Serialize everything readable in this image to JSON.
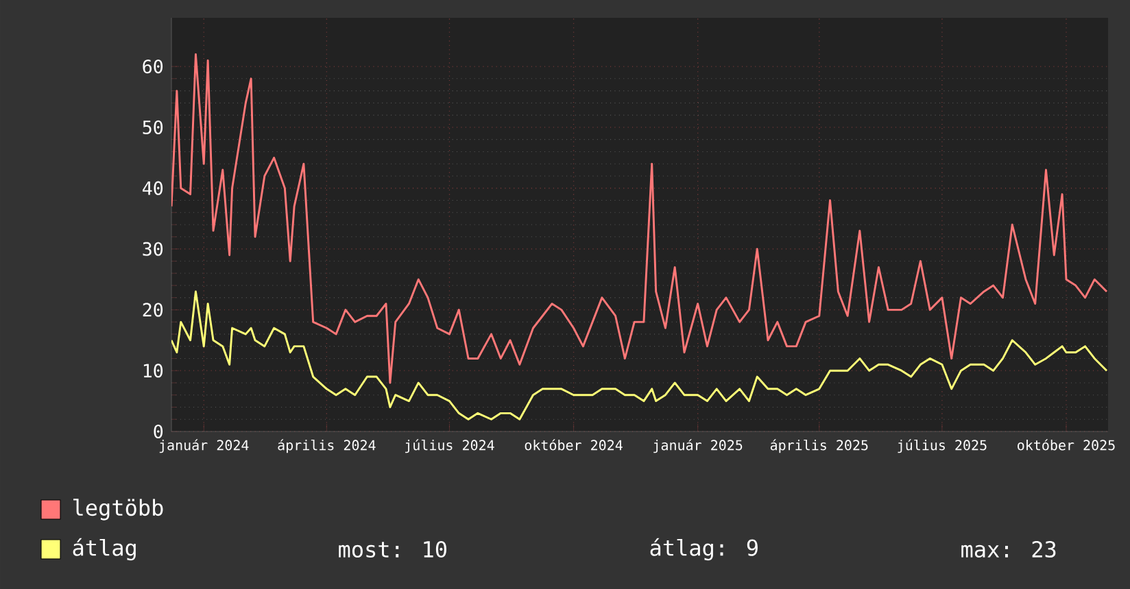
{
  "chart_data": {
    "type": "line",
    "xlim": [
      "2023-12-08",
      "2025-11-01"
    ],
    "ylim": [
      0,
      68
    ],
    "xticks": [
      {
        "value": "2024-01-01",
        "label": "január 2024"
      },
      {
        "value": "2024-04-01",
        "label": "április 2024"
      },
      {
        "value": "2024-07-01",
        "label": "július 2024"
      },
      {
        "value": "2024-10-01",
        "label": "október 2024"
      },
      {
        "value": "2025-01-01",
        "label": "január 2025"
      },
      {
        "value": "2025-04-01",
        "label": "április 2025"
      },
      {
        "value": "2025-07-01",
        "label": "július 2025"
      },
      {
        "value": "2025-10-01",
        "label": "október 2025"
      }
    ],
    "yticks": [
      0,
      10,
      20,
      30,
      40,
      50,
      60
    ],
    "grid": true,
    "legend": "bottom left",
    "series": [
      {
        "name": "legtöbb",
        "color": "#ff7777",
        "x": [
          "2023-12-08",
          "2023-12-12",
          "2023-12-15",
          "2023-12-22",
          "2023-12-26",
          "2024-01-01",
          "2024-01-04",
          "2024-01-08",
          "2024-01-15",
          "2024-01-20",
          "2024-01-22",
          "2024-02-01",
          "2024-02-05",
          "2024-02-08",
          "2024-02-15",
          "2024-02-22",
          "2024-03-01",
          "2024-03-05",
          "2024-03-08",
          "2024-03-15",
          "2024-03-22",
          "2024-04-01",
          "2024-04-08",
          "2024-04-15",
          "2024-04-22",
          "2024-05-01",
          "2024-05-08",
          "2024-05-15",
          "2024-05-18",
          "2024-05-22",
          "2024-06-01",
          "2024-06-08",
          "2024-06-15",
          "2024-06-22",
          "2024-07-01",
          "2024-07-08",
          "2024-07-15",
          "2024-07-22",
          "2024-08-01",
          "2024-08-08",
          "2024-08-15",
          "2024-08-22",
          "2024-09-01",
          "2024-09-08",
          "2024-09-15",
          "2024-09-22",
          "2024-10-01",
          "2024-10-08",
          "2024-10-15",
          "2024-10-22",
          "2024-11-01",
          "2024-11-08",
          "2024-11-15",
          "2024-11-22",
          "2024-11-28",
          "2024-12-01",
          "2024-12-08",
          "2024-12-15",
          "2024-12-22",
          "2025-01-01",
          "2025-01-08",
          "2025-01-15",
          "2025-01-22",
          "2025-02-01",
          "2025-02-08",
          "2025-02-14",
          "2025-02-22",
          "2025-03-01",
          "2025-03-08",
          "2025-03-15",
          "2025-03-22",
          "2025-04-01",
          "2025-04-09",
          "2025-04-15",
          "2025-04-22",
          "2025-05-01",
          "2025-05-08",
          "2025-05-15",
          "2025-05-22",
          "2025-06-01",
          "2025-06-08",
          "2025-06-15",
          "2025-06-22",
          "2025-07-01",
          "2025-07-08",
          "2025-07-15",
          "2025-07-22",
          "2025-08-01",
          "2025-08-08",
          "2025-08-15",
          "2025-08-22",
          "2025-09-01",
          "2025-09-08",
          "2025-09-16",
          "2025-09-22",
          "2025-09-28",
          "2025-10-01",
          "2025-10-08",
          "2025-10-15",
          "2025-10-22",
          "2025-10-31"
        ],
        "values": [
          37,
          56,
          40,
          39,
          62,
          44,
          61,
          33,
          43,
          29,
          40,
          54,
          58,
          32,
          42,
          45,
          40,
          28,
          37,
          44,
          18,
          17,
          16,
          20,
          18,
          19,
          19,
          21,
          8,
          18,
          21,
          25,
          22,
          17,
          16,
          20,
          12,
          12,
          16,
          12,
          15,
          11,
          17,
          19,
          21,
          20,
          17,
          14,
          18,
          22,
          19,
          12,
          18,
          18,
          44,
          23,
          17,
          27,
          13,
          21,
          14,
          20,
          22,
          18,
          20,
          30,
          15,
          18,
          14,
          14,
          18,
          19,
          38,
          23,
          19,
          33,
          18,
          27,
          20,
          20,
          21,
          28,
          20,
          22,
          12,
          22,
          21,
          23,
          24,
          22,
          34,
          25,
          21,
          43,
          29,
          39,
          25,
          24,
          22,
          25,
          23
        ]
      },
      {
        "name": "átlag",
        "color": "#ffff77",
        "x": [
          "2023-12-08",
          "2023-12-12",
          "2023-12-15",
          "2023-12-22",
          "2023-12-26",
          "2024-01-01",
          "2024-01-04",
          "2024-01-08",
          "2024-01-15",
          "2024-01-20",
          "2024-01-22",
          "2024-02-01",
          "2024-02-05",
          "2024-02-08",
          "2024-02-15",
          "2024-02-22",
          "2024-03-01",
          "2024-03-05",
          "2024-03-08",
          "2024-03-15",
          "2024-03-22",
          "2024-04-01",
          "2024-04-08",
          "2024-04-15",
          "2024-04-22",
          "2024-05-01",
          "2024-05-08",
          "2024-05-15",
          "2024-05-18",
          "2024-05-22",
          "2024-06-01",
          "2024-06-08",
          "2024-06-15",
          "2024-06-22",
          "2024-07-01",
          "2024-07-08",
          "2024-07-15",
          "2024-07-22",
          "2024-08-01",
          "2024-08-08",
          "2024-08-15",
          "2024-08-22",
          "2024-09-01",
          "2024-09-08",
          "2024-09-15",
          "2024-09-22",
          "2024-10-01",
          "2024-10-08",
          "2024-10-15",
          "2024-10-22",
          "2024-11-01",
          "2024-11-08",
          "2024-11-15",
          "2024-11-22",
          "2024-11-28",
          "2024-12-01",
          "2024-12-08",
          "2024-12-15",
          "2024-12-22",
          "2025-01-01",
          "2025-01-08",
          "2025-01-15",
          "2025-01-22",
          "2025-02-01",
          "2025-02-08",
          "2025-02-14",
          "2025-02-22",
          "2025-03-01",
          "2025-03-08",
          "2025-03-15",
          "2025-03-22",
          "2025-04-01",
          "2025-04-09",
          "2025-04-15",
          "2025-04-22",
          "2025-05-01",
          "2025-05-08",
          "2025-05-15",
          "2025-05-22",
          "2025-06-01",
          "2025-06-08",
          "2025-06-15",
          "2025-06-22",
          "2025-07-01",
          "2025-07-08",
          "2025-07-15",
          "2025-07-22",
          "2025-08-01",
          "2025-08-08",
          "2025-08-15",
          "2025-08-22",
          "2025-09-01",
          "2025-09-08",
          "2025-09-16",
          "2025-09-22",
          "2025-09-28",
          "2025-10-01",
          "2025-10-08",
          "2025-10-15",
          "2025-10-22",
          "2025-10-31"
        ],
        "values": [
          15,
          13,
          18,
          15,
          23,
          14,
          21,
          15,
          14,
          11,
          17,
          16,
          17,
          15,
          14,
          17,
          16,
          13,
          14,
          14,
          9,
          7,
          6,
          7,
          6,
          9,
          9,
          7,
          4,
          6,
          5,
          8,
          6,
          6,
          5,
          3,
          2,
          3,
          2,
          3,
          3,
          2,
          6,
          7,
          7,
          7,
          6,
          6,
          6,
          7,
          7,
          6,
          6,
          5,
          7,
          5,
          6,
          8,
          6,
          6,
          5,
          7,
          5,
          7,
          5,
          9,
          7,
          7,
          6,
          7,
          6,
          7,
          10,
          10,
          10,
          12,
          10,
          11,
          11,
          10,
          9,
          11,
          12,
          11,
          7,
          10,
          11,
          11,
          10,
          12,
          15,
          13,
          11,
          12,
          13,
          14,
          13,
          13,
          14,
          12,
          10
        ]
      }
    ],
    "annotations": [
      "most: 10",
      "átlag: 9",
      "max: 23"
    ]
  }
}
